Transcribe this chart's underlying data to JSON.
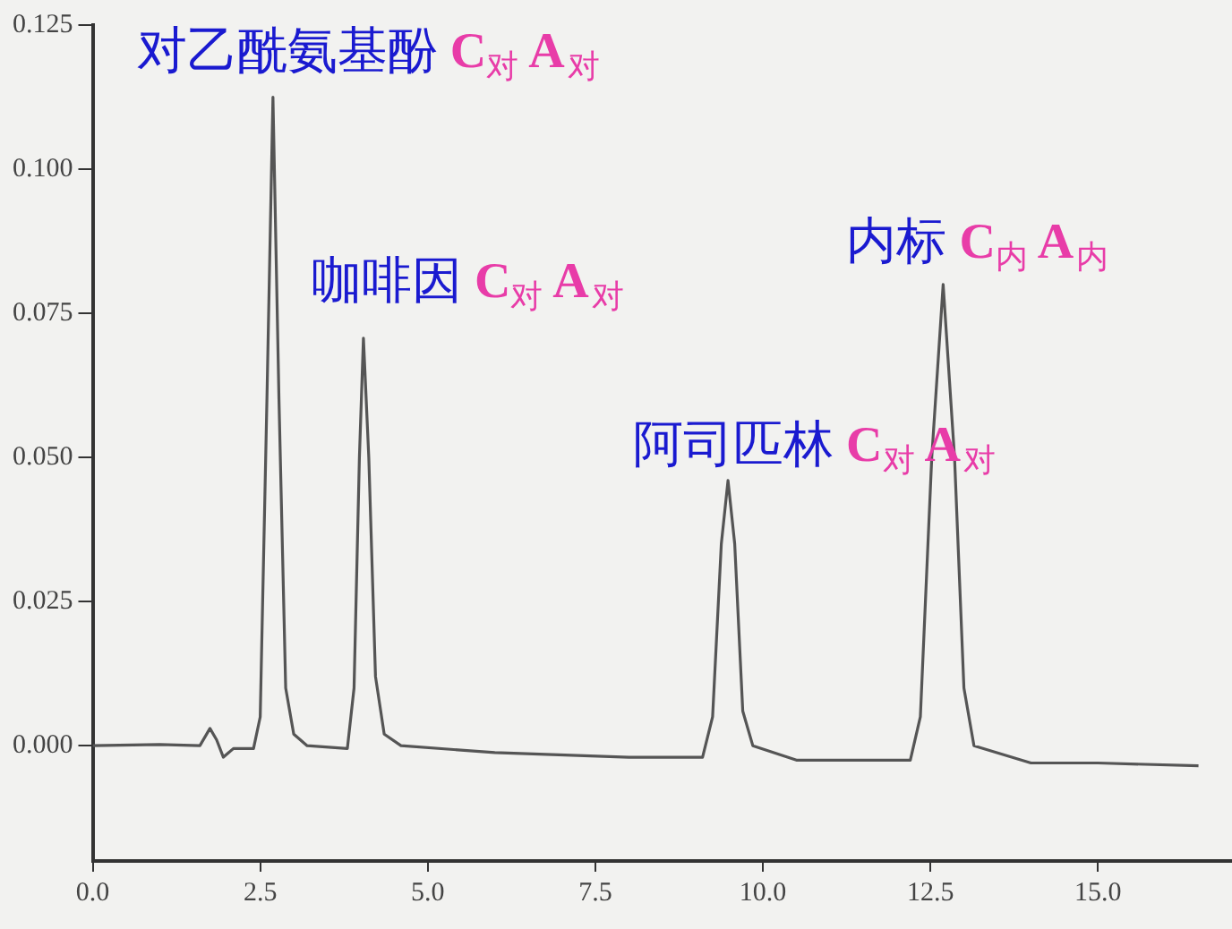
{
  "chart_data": {
    "type": "line",
    "marker": "none",
    "line_style": "solid",
    "grid": false,
    "legend": false,
    "xlim": [
      0,
      17
    ],
    "ylim": [
      -0.02,
      0.125
    ],
    "xticks": [
      {
        "value": 0,
        "label": "0.0"
      },
      {
        "value": 2.5,
        "label": "2.5"
      },
      {
        "value": 5,
        "label": "5.0"
      },
      {
        "value": 7.5,
        "label": "7.5"
      },
      {
        "value": 10,
        "label": "10.0"
      },
      {
        "value": 12.5,
        "label": "12.5"
      },
      {
        "value": 15,
        "label": "15.0"
      }
    ],
    "yticks": [
      {
        "value": 0,
        "label": "0.000"
      },
      {
        "value": 0.025,
        "label": "0.025"
      },
      {
        "value": 0.05,
        "label": "0.050"
      },
      {
        "value": 0.075,
        "label": "0.075"
      },
      {
        "value": 0.1,
        "label": "0.100"
      },
      {
        "value": 0.125,
        "label": "0.125"
      }
    ],
    "series": [
      {
        "color": "#555555",
        "x": [
          0,
          1.0,
          1.6,
          1.75,
          1.85,
          1.95,
          2.1,
          2.4,
          2.5,
          2.6,
          2.69,
          2.78,
          2.88,
          3.0,
          3.2,
          3.8,
          3.9,
          3.98,
          4.04,
          4.12,
          4.22,
          4.35,
          4.6,
          6,
          8,
          9.1,
          9.25,
          9.38,
          9.48,
          9.58,
          9.7,
          9.85,
          10.5,
          12.2,
          12.35,
          12.52,
          12.69,
          12.86,
          13.0,
          13.15,
          14,
          15,
          16.5
        ],
        "values": [
          0,
          0.0002,
          0,
          0.003,
          0.001,
          -0.002,
          -0.0005,
          -0.0005,
          0.005,
          0.06,
          0.1125,
          0.06,
          0.01,
          0.002,
          0,
          -0.0005,
          0.01,
          0.05,
          0.0707,
          0.05,
          0.012,
          0.002,
          0,
          -0.0012,
          -0.002,
          -0.002,
          0.005,
          0.035,
          0.046,
          0.035,
          0.006,
          0,
          -0.0025,
          -0.0025,
          0.005,
          0.05,
          0.08,
          0.05,
          0.01,
          0,
          -0.003,
          -0.003,
          -0.0035
        ]
      }
    ],
    "annotations": [
      {
        "text": "对乙酰氨基酚 C$_{对}$ A$_{对}$",
        "x": 2.69,
        "y": 0.1125
      },
      {
        "text": "咖啡因 C$_{对}$ A$_{对}$",
        "x": 4.04,
        "y": 0.0707
      },
      {
        "text": "阿司匹林 C$_{对}$ A$_{对}$",
        "x": 9.48,
        "y": 0.046
      },
      {
        "text": "内标 C$_{内}$ A$_{内}$",
        "x": 12.69,
        "y": 0.08
      }
    ]
  }
}
